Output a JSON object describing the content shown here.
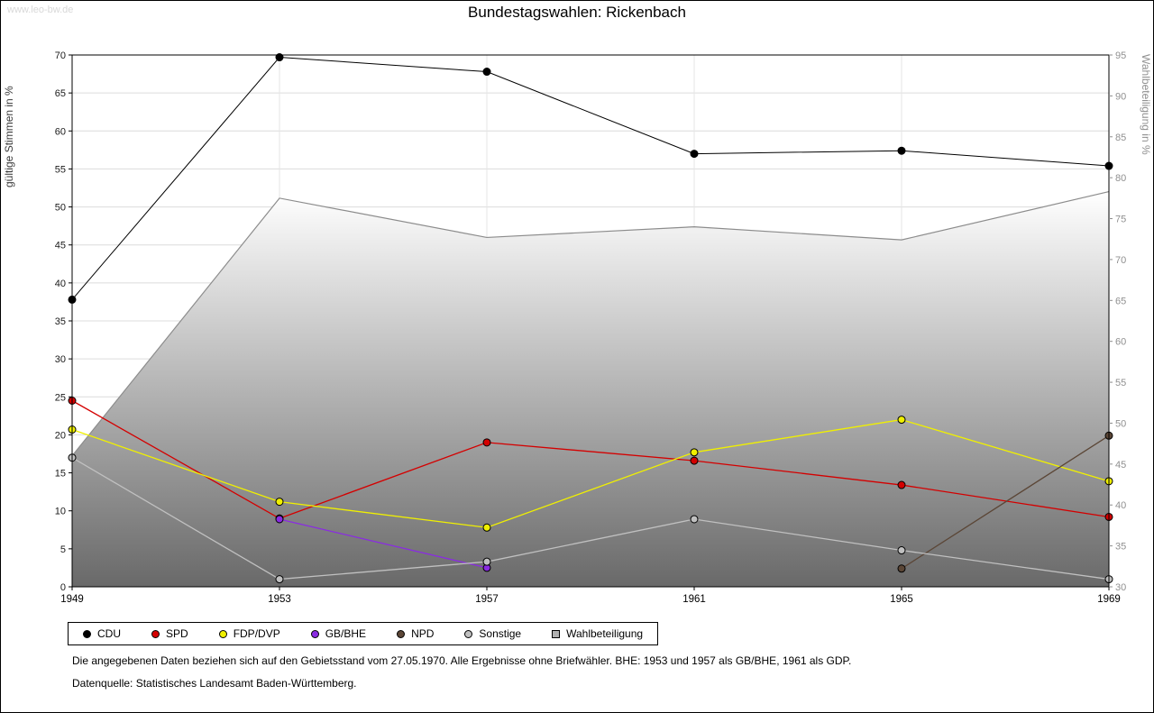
{
  "watermark": "www.leo-bw.de",
  "chart_data": {
    "type": "line",
    "title": "Bundestagswahlen: Rickenbach",
    "categories": [
      "1949",
      "1953",
      "1957",
      "1961",
      "1965",
      "1969"
    ],
    "ylabel_left": "gültige Stimmen in %",
    "ylabel_right": "Wahlbeteiligung in %",
    "ylim_left": [
      0,
      70
    ],
    "ylim_right": [
      30,
      95
    ],
    "ytick_step": 5,
    "grid": true,
    "legend_position": "bottom",
    "series": [
      {
        "name": "CDU",
        "axis": "left",
        "style": "line",
        "legend_marker": "circle",
        "color": "#000000",
        "values": [
          37.8,
          69.7,
          67.8,
          57.0,
          57.4,
          55.4
        ]
      },
      {
        "name": "SPD",
        "axis": "left",
        "style": "line",
        "legend_marker": "circle",
        "color": "#d40000",
        "values": [
          24.5,
          9.0,
          19.0,
          16.6,
          13.4,
          9.2
        ]
      },
      {
        "name": "FDP/DVP",
        "axis": "left",
        "style": "line",
        "legend_marker": "circle",
        "color": "#f0f000",
        "values": [
          20.7,
          11.2,
          7.8,
          17.7,
          22.0,
          13.9
        ]
      },
      {
        "name": "GB/BHE",
        "axis": "left",
        "style": "line",
        "legend_marker": "circle",
        "color": "#8a2be2",
        "values": [
          null,
          8.9,
          2.5,
          null,
          null,
          null
        ]
      },
      {
        "name": "NPD",
        "axis": "left",
        "style": "line",
        "legend_marker": "circle",
        "color": "#5b4636",
        "values": [
          null,
          null,
          null,
          null,
          2.4,
          19.9
        ]
      },
      {
        "name": "Sonstige",
        "axis": "left",
        "style": "line",
        "legend_marker": "circle",
        "color": "#c0c0c0",
        "values": [
          17.0,
          1.0,
          3.3,
          8.9,
          4.8,
          1.0
        ]
      },
      {
        "name": "Wahlbeteiligung",
        "axis": "right",
        "style": "area",
        "legend_marker": "square",
        "color": "#b0b0b0",
        "line_color": "#8c8c8c",
        "values": [
          46.0,
          77.5,
          72.7,
          74.0,
          72.4,
          78.3
        ]
      }
    ]
  },
  "notes": [
    "Die angegebenen Daten beziehen sich auf den Gebietsstand vom 27.05.1970. Alle Ergebnisse ohne Briefwähler. BHE: 1953 und 1957 als GB/BHE, 1961 als GDP.",
    "Datenquelle: Statistisches Landesamt Baden-Württemberg."
  ]
}
